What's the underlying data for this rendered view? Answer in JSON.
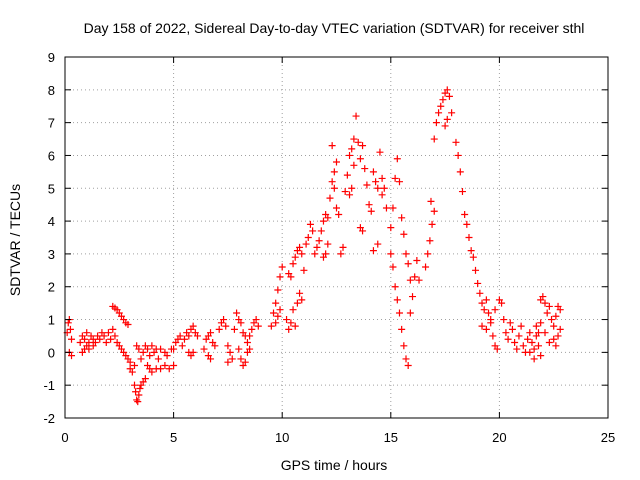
{
  "chart_data": {
    "type": "scatter",
    "title": "Day 158 of 2022, Sidereal Day-to-day VTEC variation (SDTVAR) for receiver sthl",
    "xlabel": "GPS time / hours",
    "ylabel": "SDTVAR / TECUs",
    "xlim": [
      0,
      25
    ],
    "ylim": [
      -2,
      9
    ],
    "xticks": [
      0,
      5,
      10,
      15,
      20,
      25
    ],
    "yticks": [
      -2,
      -1,
      0,
      1,
      2,
      3,
      4,
      5,
      6,
      7,
      8,
      9
    ],
    "grid": true,
    "marker": "+",
    "color": "#ff0000",
    "series": [
      {
        "name": "SDTVAR",
        "points": [
          [
            0.1,
            0.6
          ],
          [
            0.15,
            0.9
          ],
          [
            0.2,
            1.0
          ],
          [
            0.25,
            0.7
          ],
          [
            0.3,
            0.4
          ],
          [
            0.2,
            0.0
          ],
          [
            0.3,
            -0.1
          ],
          [
            0.7,
            0.3
          ],
          [
            0.8,
            0.5
          ],
          [
            0.9,
            0.4
          ],
          [
            1.0,
            0.6
          ],
          [
            1.1,
            0.3
          ],
          [
            1.2,
            0.5
          ],
          [
            1.3,
            0.4
          ],
          [
            1.4,
            0.3
          ],
          [
            1.5,
            0.5
          ],
          [
            1.6,
            0.4
          ],
          [
            1.7,
            0.6
          ],
          [
            1.8,
            0.5
          ],
          [
            1.9,
            0.3
          ],
          [
            0.8,
            0.0
          ],
          [
            0.9,
            0.1
          ],
          [
            1.0,
            0.2
          ],
          [
            1.1,
            0.1
          ],
          [
            1.3,
            0.2
          ],
          [
            2.0,
            0.6
          ],
          [
            2.1,
            0.4
          ],
          [
            2.2,
            0.7
          ],
          [
            2.3,
            0.5
          ],
          [
            2.2,
            1.4
          ],
          [
            2.3,
            1.35
          ],
          [
            2.4,
            1.3
          ],
          [
            2.5,
            1.2
          ],
          [
            2.6,
            1.1
          ],
          [
            2.7,
            1.0
          ],
          [
            2.8,
            0.9
          ],
          [
            2.9,
            0.85
          ],
          [
            2.4,
            0.3
          ],
          [
            2.5,
            0.2
          ],
          [
            2.6,
            0.1
          ],
          [
            2.7,
            0.0
          ],
          [
            2.8,
            -0.1
          ],
          [
            2.9,
            -0.2
          ],
          [
            3.0,
            -0.3
          ],
          [
            3.0,
            -0.5
          ],
          [
            3.1,
            -0.6
          ],
          [
            3.2,
            -0.4
          ],
          [
            3.2,
            -1.0
          ],
          [
            3.25,
            -1.2
          ],
          [
            3.3,
            -1.45
          ],
          [
            3.35,
            -1.5
          ],
          [
            3.4,
            -1.3
          ],
          [
            3.45,
            -1.1
          ],
          [
            3.5,
            -1.0
          ],
          [
            3.6,
            -0.9
          ],
          [
            3.7,
            -0.8
          ],
          [
            3.3,
            0.2
          ],
          [
            3.4,
            0.1
          ],
          [
            3.5,
            -0.2
          ],
          [
            3.6,
            0.0
          ],
          [
            3.7,
            0.2
          ],
          [
            3.8,
            0.1
          ],
          [
            3.9,
            -0.1
          ],
          [
            4.0,
            0.2
          ],
          [
            4.1,
            0.0
          ],
          [
            4.2,
            0.1
          ],
          [
            4.3,
            -0.2
          ],
          [
            4.4,
            0.1
          ],
          [
            3.8,
            -0.4
          ],
          [
            3.9,
            -0.5
          ],
          [
            4.0,
            -0.6
          ],
          [
            4.2,
            -0.5
          ],
          [
            4.4,
            -0.5
          ],
          [
            4.6,
            -0.4
          ],
          [
            4.8,
            -0.5
          ],
          [
            5.0,
            -0.4
          ],
          [
            4.6,
            0.0
          ],
          [
            4.7,
            -0.1
          ],
          [
            4.9,
            0.1
          ],
          [
            5.0,
            0.1
          ],
          [
            5.1,
            0.3
          ],
          [
            5.2,
            0.4
          ],
          [
            5.3,
            0.5
          ],
          [
            5.4,
            0.2
          ],
          [
            5.5,
            0.4
          ],
          [
            5.6,
            0.6
          ],
          [
            5.7,
            0.5
          ],
          [
            5.8,
            0.7
          ],
          [
            5.9,
            0.8
          ],
          [
            6.0,
            0.6
          ],
          [
            6.1,
            0.5
          ],
          [
            5.7,
            0.0
          ],
          [
            5.8,
            -0.1
          ],
          [
            5.9,
            0.0
          ],
          [
            6.4,
            0.1
          ],
          [
            6.5,
            0.4
          ],
          [
            6.6,
            0.5
          ],
          [
            6.7,
            0.6
          ],
          [
            6.8,
            0.3
          ],
          [
            6.9,
            0.2
          ],
          [
            6.6,
            -0.1
          ],
          [
            6.7,
            -0.2
          ],
          [
            7.1,
            0.7
          ],
          [
            7.2,
            0.9
          ],
          [
            7.3,
            1.0
          ],
          [
            7.4,
            0.8
          ],
          [
            7.5,
            0.2
          ],
          [
            7.6,
            0.0
          ],
          [
            7.7,
            -0.2
          ],
          [
            7.5,
            -0.3
          ],
          [
            7.8,
            0.7
          ],
          [
            7.9,
            1.2
          ],
          [
            8.0,
            1.0
          ],
          [
            8.1,
            0.9
          ],
          [
            8.2,
            0.6
          ],
          [
            8.3,
            0.5
          ],
          [
            8.4,
            0.3
          ],
          [
            8.5,
            0.5
          ],
          [
            8.6,
            0.7
          ],
          [
            8.7,
            0.9
          ],
          [
            8.8,
            1.0
          ],
          [
            8.9,
            0.8
          ],
          [
            8.0,
            0.1
          ],
          [
            8.1,
            -0.2
          ],
          [
            8.2,
            -0.4
          ],
          [
            8.3,
            -0.3
          ],
          [
            8.4,
            0.0
          ],
          [
            8.5,
            0.1
          ],
          [
            9.5,
            0.8
          ],
          [
            9.6,
            1.2
          ],
          [
            9.7,
            1.5
          ],
          [
            9.8,
            1.9
          ],
          [
            9.9,
            2.3
          ],
          [
            10.0,
            2.6
          ],
          [
            9.7,
            0.9
          ],
          [
            9.8,
            1.1
          ],
          [
            9.9,
            1.3
          ],
          [
            10.2,
            1.0
          ],
          [
            10.3,
            0.7
          ],
          [
            10.4,
            0.9
          ],
          [
            10.5,
            1.3
          ],
          [
            10.6,
            0.8
          ],
          [
            10.7,
            1.5
          ],
          [
            10.8,
            1.8
          ],
          [
            10.9,
            1.6
          ],
          [
            10.3,
            2.4
          ],
          [
            10.4,
            2.3
          ],
          [
            10.5,
            2.7
          ],
          [
            10.6,
            2.9
          ],
          [
            10.7,
            3.1
          ],
          [
            10.8,
            3.2
          ],
          [
            10.9,
            3.0
          ],
          [
            11.0,
            2.5
          ],
          [
            11.1,
            3.3
          ],
          [
            11.2,
            3.5
          ],
          [
            11.3,
            3.9
          ],
          [
            11.4,
            3.7
          ],
          [
            11.5,
            3.0
          ],
          [
            11.6,
            3.2
          ],
          [
            11.7,
            3.4
          ],
          [
            11.8,
            3.7
          ],
          [
            11.9,
            4.0
          ],
          [
            12.0,
            4.2
          ],
          [
            12.1,
            4.1
          ],
          [
            11.9,
            2.9
          ],
          [
            12.0,
            3.0
          ],
          [
            12.1,
            3.3
          ],
          [
            12.2,
            4.7
          ],
          [
            12.3,
            5.2
          ],
          [
            12.4,
            5.5
          ],
          [
            12.5,
            5.8
          ],
          [
            12.3,
            6.3
          ],
          [
            12.4,
            5.0
          ],
          [
            12.5,
            4.4
          ],
          [
            12.6,
            4.2
          ],
          [
            12.7,
            3.0
          ],
          [
            12.8,
            3.2
          ],
          [
            12.9,
            4.9
          ],
          [
            13.0,
            5.4
          ],
          [
            13.1,
            6.0
          ],
          [
            13.2,
            6.2
          ],
          [
            13.3,
            6.5
          ],
          [
            13.1,
            4.8
          ],
          [
            13.2,
            5.0
          ],
          [
            13.3,
            5.7
          ],
          [
            13.4,
            7.2
          ],
          [
            13.5,
            6.4
          ],
          [
            13.6,
            5.9
          ],
          [
            13.7,
            6.3
          ],
          [
            13.8,
            5.6
          ],
          [
            13.9,
            5.1
          ],
          [
            14.0,
            4.5
          ],
          [
            14.1,
            4.3
          ],
          [
            13.6,
            3.8
          ],
          [
            13.7,
            3.7
          ],
          [
            14.2,
            5.5
          ],
          [
            14.3,
            5.2
          ],
          [
            14.4,
            5.0
          ],
          [
            14.5,
            6.1
          ],
          [
            14.6,
            5.3
          ],
          [
            14.7,
            5.0
          ],
          [
            14.2,
            3.1
          ],
          [
            14.4,
            3.3
          ],
          [
            14.6,
            4.8
          ],
          [
            14.8,
            4.4
          ],
          [
            15.0,
            3.8
          ],
          [
            15.1,
            4.4
          ],
          [
            15.2,
            5.3
          ],
          [
            15.3,
            5.9
          ],
          [
            15.4,
            5.2
          ],
          [
            15.5,
            4.1
          ],
          [
            15.6,
            3.6
          ],
          [
            15.7,
            3.0
          ],
          [
            15.8,
            2.7
          ],
          [
            15.9,
            2.2
          ],
          [
            15.0,
            3.0
          ],
          [
            15.1,
            2.6
          ],
          [
            15.2,
            2.0
          ],
          [
            15.3,
            1.6
          ],
          [
            15.4,
            1.2
          ],
          [
            15.5,
            0.7
          ],
          [
            15.6,
            0.2
          ],
          [
            15.7,
            -0.2
          ],
          [
            15.8,
            -0.4
          ],
          [
            15.9,
            1.2
          ],
          [
            16.0,
            1.7
          ],
          [
            16.1,
            2.3
          ],
          [
            16.2,
            2.8
          ],
          [
            16.3,
            2.2
          ],
          [
            16.6,
            2.6
          ],
          [
            16.7,
            3.0
          ],
          [
            16.8,
            3.4
          ],
          [
            16.9,
            3.9
          ],
          [
            17.0,
            4.3
          ],
          [
            16.85,
            4.6
          ],
          [
            17.0,
            6.5
          ],
          [
            17.1,
            7.0
          ],
          [
            17.2,
            7.3
          ],
          [
            17.3,
            7.5
          ],
          [
            17.4,
            7.7
          ],
          [
            17.5,
            7.9
          ],
          [
            17.6,
            8.0
          ],
          [
            17.7,
            7.8
          ],
          [
            17.8,
            7.3
          ],
          [
            17.6,
            7.1
          ],
          [
            17.5,
            6.9
          ],
          [
            18.0,
            6.4
          ],
          [
            18.1,
            6.0
          ],
          [
            18.2,
            5.5
          ],
          [
            18.3,
            4.9
          ],
          [
            18.4,
            4.2
          ],
          [
            18.5,
            3.9
          ],
          [
            18.6,
            3.5
          ],
          [
            18.7,
            3.1
          ],
          [
            18.8,
            2.9
          ],
          [
            18.9,
            2.5
          ],
          [
            19.0,
            2.1
          ],
          [
            19.1,
            1.8
          ],
          [
            19.2,
            1.5
          ],
          [
            19.3,
            1.3
          ],
          [
            19.4,
            1.6
          ],
          [
            19.5,
            1.2
          ],
          [
            19.6,
            0.9
          ],
          [
            19.7,
            0.5
          ],
          [
            19.8,
            0.2
          ],
          [
            19.9,
            0.1
          ],
          [
            19.2,
            0.8
          ],
          [
            19.4,
            0.7
          ],
          [
            19.6,
            1.0
          ],
          [
            19.8,
            1.3
          ],
          [
            20.0,
            1.6
          ],
          [
            20.1,
            1.5
          ],
          [
            20.2,
            1.0
          ],
          [
            20.3,
            0.6
          ],
          [
            20.4,
            0.4
          ],
          [
            20.5,
            0.9
          ],
          [
            20.6,
            0.7
          ],
          [
            20.7,
            0.3
          ],
          [
            20.8,
            0.1
          ],
          [
            20.9,
            0.5
          ],
          [
            21.0,
            0.8
          ],
          [
            21.1,
            0.2
          ],
          [
            21.2,
            0.0
          ],
          [
            21.3,
            0.4
          ],
          [
            21.4,
            0.6
          ],
          [
            21.5,
            0.3
          ],
          [
            21.6,
            0.1
          ],
          [
            21.7,
            0.5
          ],
          [
            21.8,
            0.2
          ],
          [
            21.9,
            -0.1
          ],
          [
            21.6,
            -0.2
          ],
          [
            21.8,
            0.6
          ],
          [
            21.9,
            0.9
          ],
          [
            21.7,
            0.8
          ],
          [
            21.4,
            0.0
          ],
          [
            21.9,
            1.6
          ],
          [
            22.0,
            1.7
          ],
          [
            22.1,
            1.5
          ],
          [
            22.2,
            1.2
          ],
          [
            22.3,
            1.4
          ],
          [
            22.4,
            1.0
          ],
          [
            22.5,
            0.8
          ],
          [
            22.6,
            1.1
          ],
          [
            22.7,
            1.4
          ],
          [
            22.8,
            1.3
          ],
          [
            22.1,
            0.6
          ],
          [
            22.3,
            0.3
          ],
          [
            22.5,
            0.4
          ],
          [
            22.6,
            0.2
          ],
          [
            22.7,
            0.5
          ],
          [
            22.8,
            0.7
          ]
        ]
      }
    ]
  }
}
